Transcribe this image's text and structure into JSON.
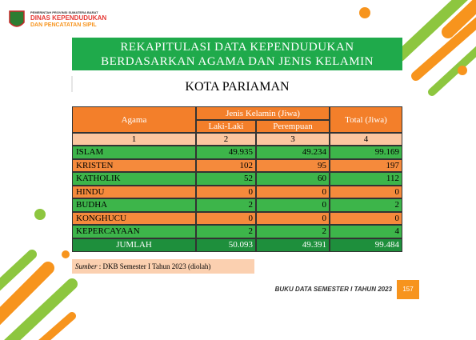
{
  "header": {
    "org_line": "PEMERINTAH PROVINSI SUMATERA BARAT",
    "agency_line1": "DINAS KEPENDUDUKAN",
    "agency_line2": "DAN PENCATATAN SIPIL"
  },
  "title": {
    "line1": "REKAPITULASI DATA KEPENDUDUKAN",
    "line2": "BERDASARKAN AGAMA DAN JENIS KELAMIN"
  },
  "subtitle": "KOTA PARIAMAN",
  "table": {
    "headers": {
      "religion": "Agama",
      "gender_group": "Jenis Kelamin (Jiwa)",
      "total": "Total (Jiwa)",
      "male": "Laki-Laki",
      "female": "Perempuan"
    },
    "column_numbers": [
      "1",
      "2",
      "3",
      "4"
    ],
    "rows": [
      [
        "ISLAM",
        "49.935",
        "49.234",
        "99.169"
      ],
      [
        "KRISTEN",
        "102",
        "95",
        "197"
      ],
      [
        "KATHOLIK",
        "52",
        "60",
        "112"
      ],
      [
        "HINDU",
        "0",
        "0",
        "0"
      ],
      [
        "BUDHA",
        "2",
        "0",
        "2"
      ],
      [
        "KONGHUCU",
        "0",
        "0",
        "0"
      ],
      [
        "KEPERCAYAAN",
        "2",
        "2",
        "4"
      ]
    ],
    "total_row": [
      "JUMLAH",
      "50.093",
      "49.391",
      "99.484"
    ]
  },
  "source": {
    "label": "Sumber",
    "text": ": DKB Semester I Tahun 2023 (diolah)"
  },
  "footer": {
    "book": "BUKU DATA SEMESTER I TAHUN 2023",
    "page": "157"
  }
}
